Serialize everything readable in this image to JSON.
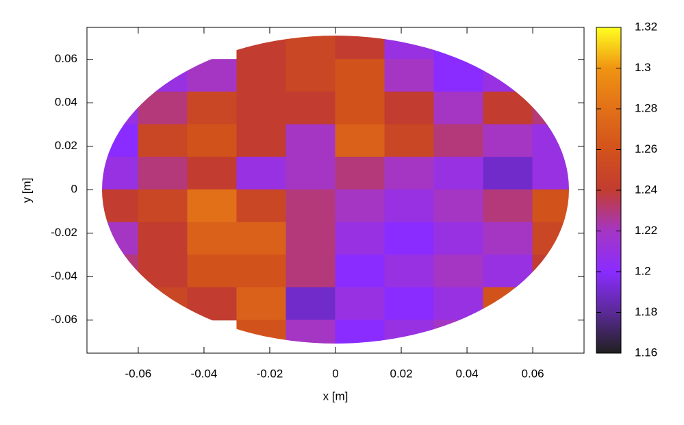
{
  "chart_data": {
    "type": "heatmap",
    "x_label": "x [m]",
    "y_label": "y [m]",
    "x": [
      -0.0675,
      -0.0525,
      -0.0375,
      -0.0225,
      -0.0075,
      0.0075,
      0.0225,
      0.0375,
      0.0525,
      0.0675
    ],
    "y": [
      0.0675,
      0.0525,
      0.0375,
      0.0225,
      0.0075,
      -0.0075,
      -0.0225,
      -0.0375,
      -0.0525,
      -0.0675
    ],
    "values": [
      [
        null,
        null,
        null,
        1.24,
        1.25,
        1.24,
        1.21,
        1.2,
        null,
        null
      ],
      [
        null,
        1.21,
        1.22,
        1.24,
        1.25,
        1.26,
        1.22,
        1.2,
        1.21,
        null
      ],
      [
        1.21,
        1.23,
        1.25,
        1.24,
        1.24,
        1.26,
        1.24,
        1.22,
        1.24,
        1.23
      ],
      [
        1.2,
        1.25,
        1.26,
        1.24,
        1.22,
        1.27,
        1.25,
        1.23,
        1.22,
        1.21
      ],
      [
        1.21,
        1.23,
        1.24,
        1.21,
        1.22,
        1.23,
        1.22,
        1.21,
        1.19,
        1.21
      ],
      [
        1.24,
        1.25,
        1.28,
        1.25,
        1.23,
        1.22,
        1.21,
        1.22,
        1.23,
        1.26
      ],
      [
        1.22,
        1.24,
        1.27,
        1.27,
        1.23,
        1.21,
        1.2,
        1.21,
        1.22,
        1.25
      ],
      [
        1.23,
        1.24,
        1.26,
        1.26,
        1.23,
        1.2,
        1.21,
        1.22,
        1.21,
        1.24
      ],
      [
        null,
        1.25,
        1.24,
        1.27,
        1.19,
        1.21,
        1.2,
        1.21,
        1.26,
        null
      ],
      [
        null,
        null,
        null,
        1.26,
        1.22,
        1.2,
        1.21,
        1.22,
        null,
        null
      ]
    ],
    "xlim": [
      -0.0756,
      0.0756
    ],
    "ylim": [
      -0.0752,
      0.0747
    ],
    "xticks": [
      -0.06,
      -0.04,
      -0.02,
      0,
      0.02,
      0.04,
      0.06
    ],
    "yticks": [
      -0.06,
      -0.04,
      -0.02,
      0,
      0.02,
      0.04,
      0.06
    ],
    "zlim": [
      1.16,
      1.32
    ],
    "zticks": [
      1.16,
      1.18,
      1.2,
      1.22,
      1.24,
      1.26,
      1.28,
      1.3,
      1.32
    ],
    "palette": [
      "#202020",
      "#5a2a96",
      "#8a2cff",
      "#a536c4",
      "#c23c30",
      "#d2521c",
      "#e27018",
      "#f09412",
      "#ffff20"
    ]
  }
}
